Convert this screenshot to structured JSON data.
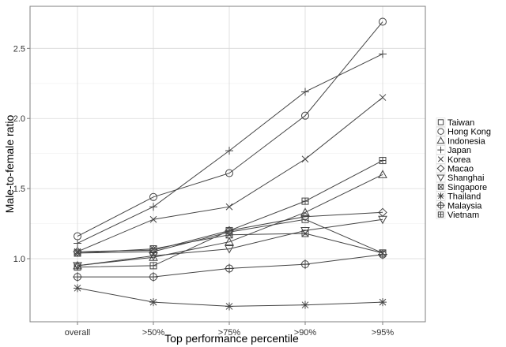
{
  "chart_data": {
    "type": "line",
    "title": "",
    "xlabel": "Top performance percentile",
    "ylabel": "Male-to-female ratio",
    "categories": [
      "overall",
      ">50%",
      ">75%",
      ">90%",
      ">95%"
    ],
    "ylim": [
      0.55,
      2.8
    ],
    "yticks": [
      1.0,
      1.5,
      2.0,
      2.5
    ],
    "ytick_labels": [
      "1.0",
      "1.5",
      "2.0",
      "2.5"
    ],
    "grid": true,
    "legend_position": "right",
    "line_color": "#444444",
    "series": [
      {
        "name": "Taiwan",
        "marker": "square",
        "values": [
          1.04,
          1.05,
          1.19,
          1.28,
          1.04
        ]
      },
      {
        "name": "Hong Kong",
        "marker": "circle",
        "values": [
          1.16,
          1.44,
          1.61,
          2.02,
          2.69
        ]
      },
      {
        "name": "Indonesia",
        "marker": "triangle",
        "values": [
          0.95,
          1.01,
          1.12,
          1.33,
          1.6
        ]
      },
      {
        "name": "Japan",
        "marker": "plus",
        "values": [
          1.11,
          1.37,
          1.77,
          2.19,
          2.46
        ]
      },
      {
        "name": "Korea",
        "marker": "x",
        "values": [
          1.05,
          1.28,
          1.37,
          1.71,
          2.15
        ]
      },
      {
        "name": "Macao",
        "marker": "diamond",
        "values": [
          1.05,
          1.06,
          1.2,
          1.3,
          1.33
        ]
      },
      {
        "name": "Shanghai",
        "marker": "triangle-down",
        "values": [
          0.95,
          1.02,
          1.07,
          1.2,
          1.28
        ]
      },
      {
        "name": "Singapore",
        "marker": "square-x",
        "values": [
          1.04,
          1.07,
          1.17,
          1.18,
          1.04
        ]
      },
      {
        "name": "Thailand",
        "marker": "star",
        "values": [
          0.79,
          0.69,
          0.66,
          0.67,
          0.69
        ]
      },
      {
        "name": "Malaysia",
        "marker": "circle-plus",
        "values": [
          0.87,
          0.87,
          0.93,
          0.96,
          1.03
        ]
      },
      {
        "name": "Vietnam",
        "marker": "square-plus",
        "values": [
          0.94,
          0.95,
          1.2,
          1.41,
          1.7
        ]
      }
    ]
  }
}
